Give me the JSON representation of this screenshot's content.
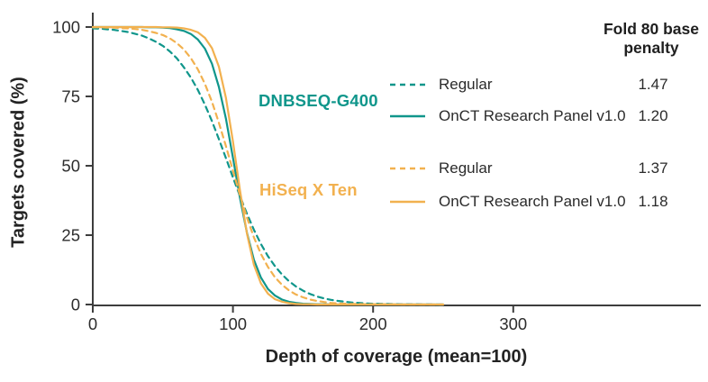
{
  "chart_data": {
    "type": "line",
    "title": "",
    "xlabel": "Depth of coverage (mean=100)",
    "ylabel": "Targets covered (%)",
    "xlim": [
      0,
      435
    ],
    "ylim": [
      0,
      100
    ],
    "x_ticks": [
      0,
      100,
      200,
      300
    ],
    "y_ticks": [
      0,
      25,
      50,
      75,
      100
    ],
    "grid": false,
    "legend": {
      "position": "right",
      "header": [
        "Fold 80 base",
        "penalty"
      ]
    },
    "colors": {
      "teal": "#10968b",
      "orange": "#f2b14f",
      "axis": "#3d3d3d",
      "text": "#232323"
    },
    "groups": [
      {
        "id": "dnbseq",
        "label": "DNBSEQ-G400",
        "color": "#10968b"
      },
      {
        "id": "hiseq",
        "label": "HiSeq X Ten",
        "color": "#f2b14f"
      }
    ],
    "x": [
      0,
      5,
      10,
      15,
      20,
      25,
      30,
      35,
      40,
      45,
      50,
      55,
      60,
      65,
      70,
      75,
      80,
      85,
      90,
      95,
      100,
      105,
      110,
      115,
      120,
      125,
      130,
      135,
      140,
      145,
      150,
      155,
      160,
      165,
      170,
      175,
      180,
      185,
      190,
      195,
      200,
      205,
      210,
      215,
      220,
      225,
      230,
      235,
      240,
      245,
      250
    ],
    "series": [
      {
        "name": "Regular",
        "group": "DNBSEQ-G400",
        "style": "dashed",
        "color": "#10968b",
        "fold_80_base_penalty": "1.47",
        "y": [
          99.5,
          99.4,
          99.2,
          99,
          98.6,
          98.2,
          97.6,
          96.9,
          95.9,
          94.7,
          93.2,
          91.2,
          88.7,
          85.5,
          81.8,
          77.3,
          72,
          66.1,
          59.6,
          52.8,
          45.8,
          39.1,
          32.7,
          26.9,
          21.8,
          17.4,
          13.8,
          10.8,
          8.4,
          6.5,
          5,
          3.8,
          2.9,
          2.2,
          1.7,
          1.3,
          1,
          0.7,
          0.6,
          0.4,
          0.3,
          0.25,
          0.2,
          0.15,
          0.1,
          0.1,
          0.1,
          0.05,
          0.05,
          0,
          0
        ]
      },
      {
        "name": "OnCT Research Panel v1.0",
        "group": "DNBSEQ-G400",
        "style": "solid",
        "color": "#10968b",
        "fold_80_base_penalty": "1.20",
        "y": [
          100,
          100,
          100,
          100,
          100,
          100,
          100,
          100,
          99.9,
          99.9,
          99.8,
          99.6,
          99.2,
          98.6,
          97.5,
          95.5,
          92.2,
          86.8,
          78.4,
          67,
          52.9,
          38.4,
          25.8,
          16.1,
          9.7,
          5.6,
          3.2,
          1.8,
          1,
          0.6,
          0.3,
          0.2,
          0.1,
          0.1,
          0,
          0,
          0,
          0,
          0,
          0,
          0,
          0,
          0,
          0,
          0,
          0,
          0,
          0,
          0,
          0,
          0
        ]
      },
      {
        "name": "Regular",
        "group": "HiSeq X Ten",
        "style": "dashed",
        "color": "#f2b14f",
        "fold_80_base_penalty": "1.37",
        "y": [
          99.9,
          99.9,
          99.8,
          99.8,
          99.6,
          99.5,
          99.3,
          99,
          98.5,
          97.9,
          97.1,
          95.9,
          94.2,
          91.9,
          88.8,
          84.7,
          79.5,
          73.1,
          65.5,
          57.1,
          48.2,
          39.4,
          31.3,
          24.2,
          18.2,
          13.5,
          9.8,
          7.1,
          5.1,
          3.6,
          2.6,
          1.8,
          1.3,
          0.9,
          0.6,
          0.4,
          0.3,
          0.2,
          0.2,
          0.1,
          0.1,
          0.1,
          0.05,
          0.05,
          0,
          0,
          0,
          0,
          0,
          0,
          0
        ]
      },
      {
        "name": "OnCT Research Panel v1.0",
        "group": "HiSeq X Ten",
        "style": "solid",
        "color": "#f2b14f",
        "fold_80_base_penalty": "1.18",
        "y": [
          100,
          100,
          100,
          100,
          100,
          100,
          100,
          100,
          100,
          100,
          99.9,
          99.9,
          99.8,
          99.5,
          99,
          98.1,
          96.1,
          92.4,
          85.7,
          74.5,
          58.8,
          41.2,
          25.5,
          14.3,
          7.6,
          3.9,
          1.9,
          1,
          0.5,
          0.2,
          0.1,
          0.1,
          0,
          0,
          0,
          0,
          0,
          0,
          0,
          0,
          0,
          0,
          0,
          0,
          0,
          0,
          0,
          0,
          0,
          0,
          0
        ]
      }
    ]
  }
}
